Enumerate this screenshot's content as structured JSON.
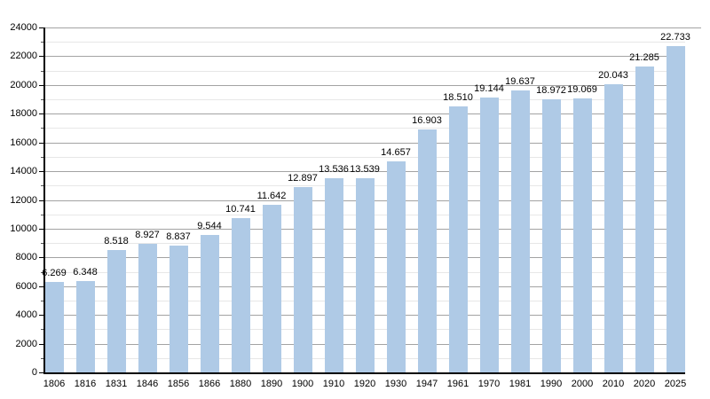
{
  "chart_data": {
    "type": "bar",
    "title": "",
    "xlabel": "",
    "ylabel": "",
    "categories": [
      "1806",
      "1816",
      "1831",
      "1846",
      "1856",
      "1866",
      "1880",
      "1890",
      "1900",
      "1910",
      "1920",
      "1930",
      "1947",
      "1961",
      "1970",
      "1981",
      "1990",
      "2000",
      "2010",
      "2020",
      "2025"
    ],
    "values": [
      6269,
      6348,
      8518,
      8927,
      8837,
      9544,
      10741,
      11642,
      12897,
      13536,
      13539,
      14657,
      16903,
      18510,
      19144,
      19637,
      18972,
      19069,
      20043,
      21285,
      22733
    ],
    "value_labels": [
      "6.269",
      "6.348",
      "8.518",
      "8.927",
      "8.837",
      "9.544",
      "10.741",
      "11.642",
      "12.897",
      "13.536",
      "13.539",
      "14.657",
      "16.903",
      "18.510",
      "19.144",
      "19.637",
      "18.972",
      "19.069",
      "20.043",
      "21.285",
      "22.733"
    ],
    "ylim": [
      0,
      24000
    ],
    "ytick_step": 2000,
    "yminor_step": 1000,
    "ytick_labels": [
      "0",
      "2000",
      "4000",
      "6000",
      "8000",
      "10000",
      "12000",
      "14000",
      "16000",
      "18000",
      "20000",
      "22000",
      "24000"
    ],
    "grid": true,
    "legend_position": "none",
    "colors": {
      "bar": "#afcae6",
      "major_grid": "#a3a3a3",
      "minor_grid": "#e7e7e7",
      "axis": "#000000",
      "text": "#000000",
      "background": "#ffffff"
    }
  }
}
